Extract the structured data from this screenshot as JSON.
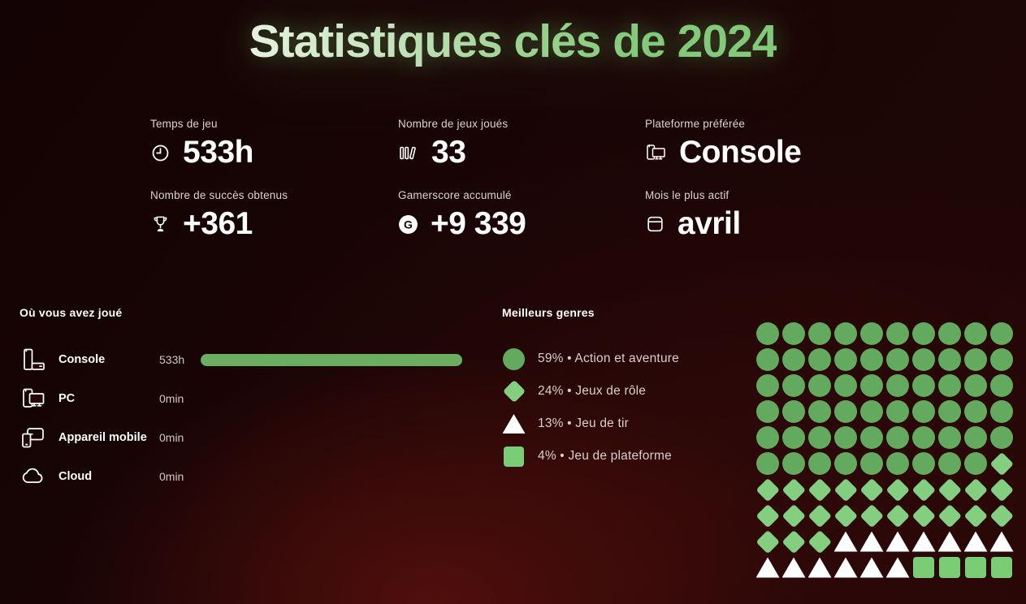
{
  "page": {
    "title": "Statistiques clés de 2024"
  },
  "colors": {
    "background_glow": "#3d0808",
    "background_dark": "#150404",
    "title_green_light": "#e6f2e1",
    "title_green": "#82c97a",
    "circle_green": "#64aa5e",
    "diamond_green": "#84cf7f",
    "square_green": "#7bcd75",
    "bar_green": "#6bae60",
    "triangle_white": "#ffffff",
    "muted_text": "#d9cfcd"
  },
  "stats": {
    "items": [
      {
        "label": "Temps de jeu",
        "value": "533h",
        "icon": "clock"
      },
      {
        "label": "Nombre de jeux joués",
        "value": "33",
        "icon": "games-library"
      },
      {
        "label": "Plateforme préférée",
        "value": "Console",
        "icon": "devices"
      },
      {
        "label": "Nombre de succès obtenus",
        "value": "+361",
        "icon": "trophy"
      },
      {
        "label": "Gamerscore accumulé",
        "value": "+9 339",
        "icon": "gamerscore"
      },
      {
        "label": "Mois le plus actif",
        "value": "avril",
        "icon": "calendar"
      }
    ]
  },
  "where_played": {
    "heading": "Où vous avez joué",
    "rows": [
      {
        "label": "Console",
        "time": "533h",
        "bar_percent": 100
      },
      {
        "label": "PC",
        "time": "0min",
        "bar_percent": 0
      },
      {
        "label": "Appareil mobile",
        "time": "0min",
        "bar_percent": 0
      },
      {
        "label": "Cloud",
        "time": "0min",
        "bar_percent": 0
      }
    ]
  },
  "top_genres": {
    "heading": "Meilleurs genres",
    "legend": [
      {
        "shape": "circle",
        "color": "#64aa5e",
        "label": "59% • Action et aventure"
      },
      {
        "shape": "diamond",
        "color": "#84cf7f",
        "label": "24% • Jeux de rôle"
      },
      {
        "shape": "triangle",
        "color": "#ffffff",
        "label": "13% • Jeu de tir"
      },
      {
        "shape": "square",
        "color": "#7bcd75",
        "label": "4% • Jeu de plateforme"
      }
    ]
  },
  "chart_data": [
    {
      "type": "pie",
      "variant": "waffle-10x10",
      "title": "Meilleurs genres",
      "legend_position": "left",
      "slices": [
        {
          "label": "Action et aventure",
          "percent": 59,
          "shape": "circle",
          "color": "#64aa5e"
        },
        {
          "label": "Jeux de rôle",
          "percent": 24,
          "shape": "diamond",
          "color": "#84cf7f"
        },
        {
          "label": "Jeu de tir",
          "percent": 13,
          "shape": "triangle",
          "color": "#ffffff"
        },
        {
          "label": "Jeu de plateforme",
          "percent": 4,
          "shape": "square",
          "color": "#7bcd75"
        }
      ],
      "waffle_rows": [
        "cccccccccc",
        "cccccccccc",
        "cccccccccc",
        "cccccccccc",
        "cccccccccc",
        "cccccccccd",
        "dddddddddd",
        "dddddddddd",
        "dddttttttt",
        "ttttttssss"
      ]
    },
    {
      "type": "bar",
      "orientation": "horizontal",
      "title": "Où vous avez joué",
      "categories": [
        "Console",
        "PC",
        "Appareil mobile",
        "Cloud"
      ],
      "values_label": [
        "533h",
        "0min",
        "0min",
        "0min"
      ],
      "values_percent": [
        100,
        0,
        0,
        0
      ],
      "bar_color": "#6bae60"
    }
  ]
}
